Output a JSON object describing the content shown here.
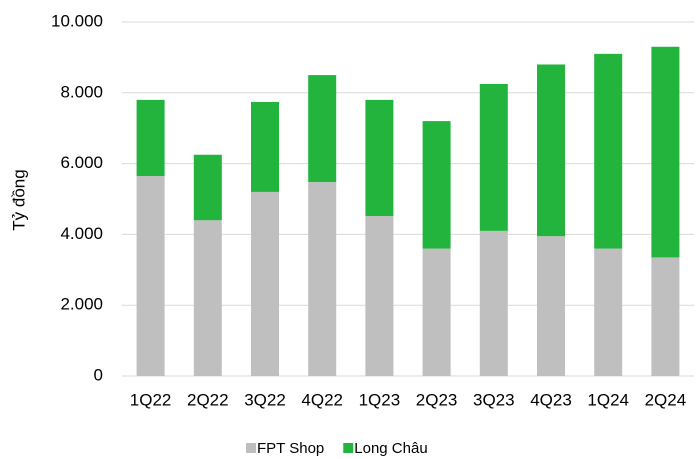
{
  "chart_data": {
    "type": "stacked_bar",
    "y_label": "Tỷ đồng",
    "categories": [
      "1Q22",
      "2Q22",
      "3Q22",
      "4Q22",
      "1Q23",
      "2Q23",
      "3Q23",
      "4Q23",
      "1Q24",
      "2Q24"
    ],
    "series": [
      {
        "name": "FPT Shop",
        "color": "#bfbfbf",
        "values": [
          5650,
          4400,
          5200,
          5480,
          4520,
          3600,
          4100,
          3950,
          3600,
          3350
        ]
      },
      {
        "name": "Long Châu",
        "color": "#22b43c",
        "values": [
          2150,
          1850,
          2540,
          3020,
          3280,
          3600,
          4150,
          4850,
          5500,
          5950
        ]
      }
    ],
    "ylim": [
      0,
      10000
    ],
    "yticks": [
      0,
      {
        "value": 2000,
        "label": "2.000"
      },
      {
        "value": 4000,
        "label": "4.000"
      },
      {
        "value": 6000,
        "label": "6.000"
      },
      {
        "value": 8000,
        "label": "8.000"
      },
      {
        "value": 10000,
        "label": "10.000"
      }
    ],
    "grid": true,
    "legend": "bottom"
  }
}
